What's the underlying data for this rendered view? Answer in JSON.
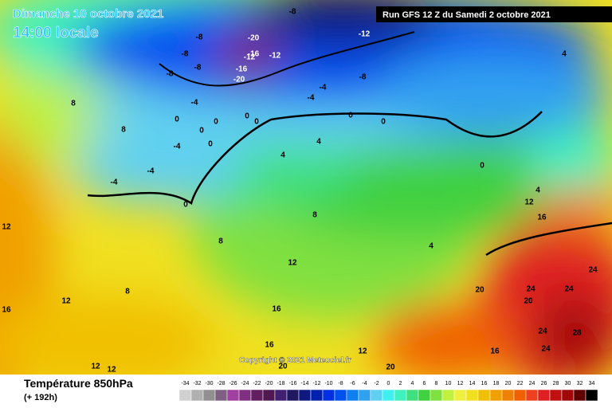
{
  "header": {
    "date": "Dimanche 10 octobre 2021",
    "time": "14:00 locale",
    "run": "Run GFS 12 Z du Samedi 2 octobre 2021",
    "copyright": "Copyright © 2021 Meteociel.fr"
  },
  "legend": {
    "title": "Température 850hPa",
    "range": "(+ 192h)",
    "scale": [
      -34,
      -32,
      -30,
      -28,
      -26,
      -24,
      -22,
      -20,
      -18,
      -16,
      -14,
      -12,
      -10,
      -8,
      -6,
      -4,
      -2,
      0,
      2,
      4,
      6,
      8,
      10,
      12,
      14,
      16,
      18,
      20,
      22,
      24,
      26,
      28,
      30,
      32,
      34
    ],
    "colors": [
      "#d0d0d0",
      "#b0b0b0",
      "#909090",
      "#806080",
      "#a040a0",
      "#803080",
      "#602060",
      "#501850",
      "#402070",
      "#201860",
      "#101880",
      "#0020b0",
      "#0030e0",
      "#0050f0",
      "#1080f0",
      "#30a0f0",
      "#60d0f0",
      "#40f0f0",
      "#40f0c0",
      "#40e080",
      "#40d040",
      "#80e040",
      "#c0f040",
      "#f0f040",
      "#f0e020",
      "#f0c000",
      "#f0a000",
      "#f08000",
      "#f06000",
      "#f04020",
      "#e02020",
      "#c01010",
      "#a00808",
      "#600000",
      "#000000"
    ]
  },
  "contour_labels": [
    -8,
    -8,
    -20,
    -16,
    -12,
    -12,
    -20,
    -16,
    -12,
    -8,
    -8,
    -8,
    -8,
    -4,
    -4,
    -4,
    -4,
    -4,
    -4,
    0,
    0,
    0,
    0,
    0,
    0,
    0,
    0,
    0,
    0,
    4,
    4,
    4,
    4,
    4,
    8,
    8,
    8,
    8,
    8,
    12,
    12,
    12,
    12,
    16,
    16,
    16,
    20,
    20,
    20,
    20,
    24,
    24,
    24,
    24,
    24,
    28,
    12,
    12,
    12,
    16,
    16
  ]
}
